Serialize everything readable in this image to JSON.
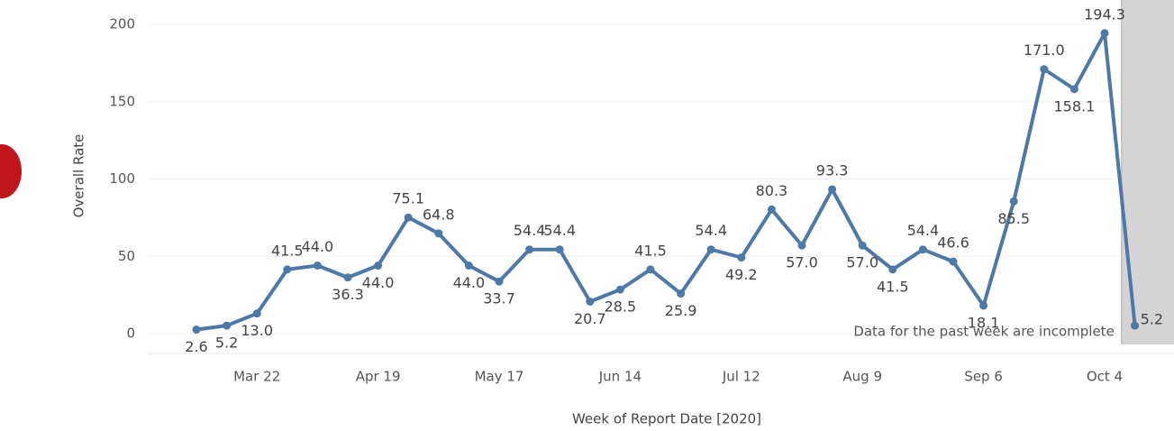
{
  "chart_data": {
    "type": "line",
    "x_label": "Week of Report Date [2020]",
    "y_label": "Overall Rate",
    "annotation": "Data for the past week are incomplete",
    "categories": [
      null,
      null,
      "Mar 22",
      null,
      null,
      null,
      "Apr 19",
      null,
      null,
      null,
      "May 17",
      null,
      null,
      null,
      "Jun 14",
      null,
      null,
      null,
      "Jul 12",
      null,
      null,
      null,
      "Aug 9",
      null,
      null,
      null,
      "Sep 6",
      null,
      null,
      null,
      "Oct 4",
      null
    ],
    "series": [
      {
        "name": "Overall Rate",
        "color": "#4e79a7",
        "values": [
          2.6,
          5.2,
          13.0,
          41.5,
          44.0,
          36.3,
          44.0,
          75.1,
          64.8,
          44.0,
          33.7,
          54.4,
          54.4,
          20.7,
          28.5,
          41.5,
          25.9,
          54.4,
          49.2,
          80.3,
          57.0,
          93.3,
          57.0,
          41.5,
          54.4,
          46.6,
          18.1,
          85.5,
          171.0,
          158.1,
          194.3,
          5.2
        ],
        "value_labels": [
          "2.6",
          "5.2",
          "13.0",
          "41.5",
          "44.0",
          "36.3",
          "44.0",
          "75.1",
          "64.8",
          "44.0",
          "33.7",
          "54.4",
          "54.4",
          "20.7",
          "28.5",
          "41.5",
          "25.9",
          "54.4",
          "49.2",
          "80.3",
          "57.0",
          "93.3",
          "57.0",
          "41.5",
          "54.4",
          "46.6",
          "18.1",
          "85.5",
          "171.0",
          "158.1",
          "194.3",
          "5.2"
        ]
      }
    ],
    "ylim": [
      0,
      200
    ],
    "yticks": [
      0,
      50,
      100,
      150,
      200
    ],
    "grid": true
  }
}
